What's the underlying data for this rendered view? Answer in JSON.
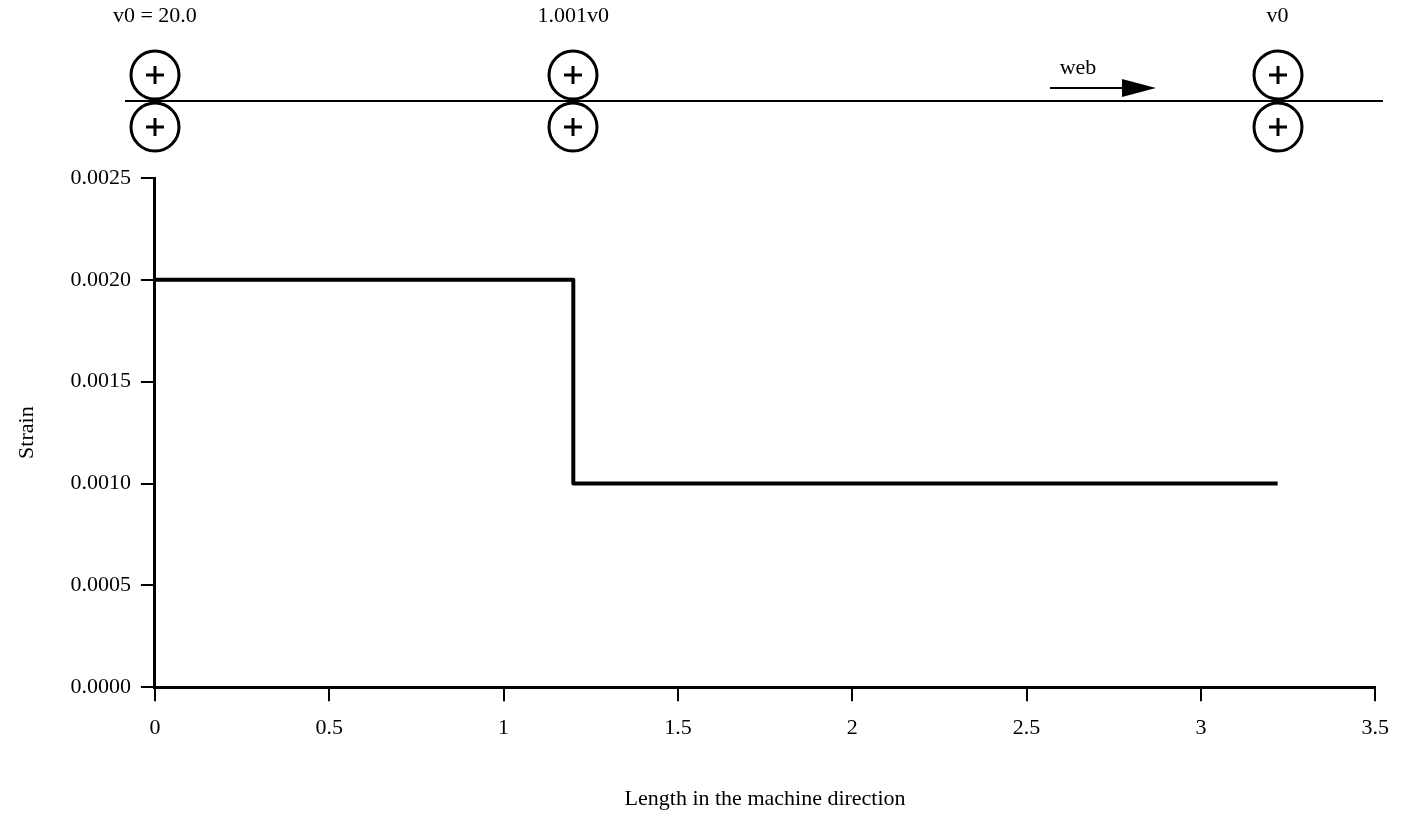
{
  "chart_data": {
    "type": "step",
    "xlabel": "Length in the machine direction",
    "ylabel": "Strain",
    "x": [
      0,
      1.2,
      3.22
    ],
    "series": [
      {
        "color": "#000000",
        "values": [
          0.002,
          0.001,
          0.001
        ]
      }
    ],
    "xlim": [
      0,
      3.5
    ],
    "xticks": [
      0,
      0.5,
      1,
      1.5,
      2,
      2.5,
      3,
      3.5
    ],
    "ylim": [
      0,
      0.0025
    ],
    "yticks": [
      {
        "value": 0,
        "label": "0.0000"
      },
      {
        "value": 0.0005,
        "label": "0.0005"
      },
      {
        "value": 0.001,
        "label": "0.0010"
      },
      {
        "value": 0.0015,
        "label": "0.0015"
      },
      {
        "value": 0.002,
        "label": "0.0020"
      },
      {
        "value": 0.0025,
        "label": "0.0025"
      }
    ],
    "grid": false,
    "legend": false,
    "marker": "none",
    "line_style": "solid",
    "annotations": [
      "v0 = 20.0",
      "1.001v0",
      "v0",
      "web"
    ]
  }
}
